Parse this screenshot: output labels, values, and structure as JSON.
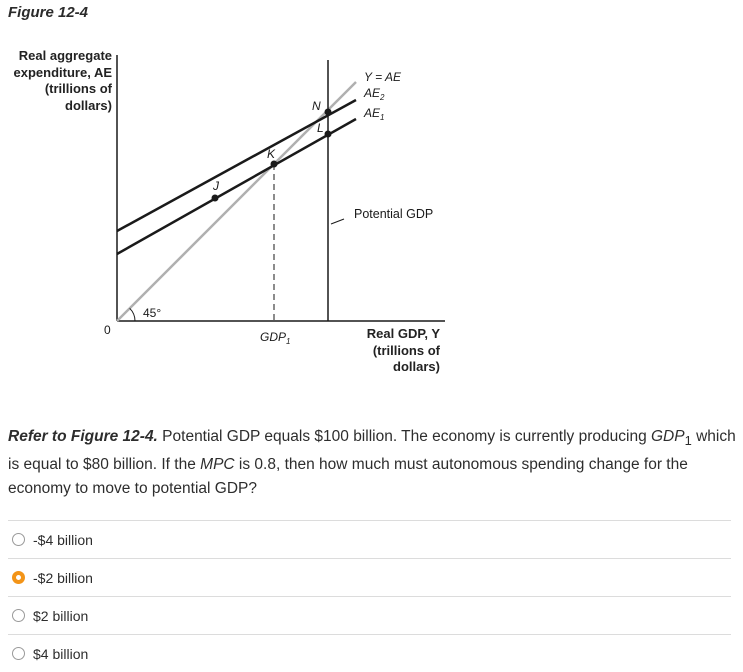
{
  "figure": {
    "title": "Figure 12-4",
    "y_axis_label": [
      "Real aggregate",
      "expenditure, AE",
      "(trillions of",
      "dollars)"
    ],
    "x_axis_label": [
      "Real GDP, Y",
      "(trillions of",
      "dollars)"
    ],
    "origin_label": "0",
    "angle_label": "45°",
    "curve_labels": {
      "y_equals_ae": "Y = AE",
      "ae2": "AE",
      "ae2_sub": "2",
      "ae1": "AE",
      "ae1_sub": "1",
      "potential_gdp": "Potential GDP",
      "gdp1": "GDP",
      "gdp1_sub": "1"
    },
    "points": [
      "J",
      "K",
      "L",
      "N"
    ]
  },
  "question": {
    "ref": "Refer to Figure 12-4.",
    "text_1": " Potential GDP equals $100 billion. The economy is currently producing ",
    "gdp_symbol": "GDP",
    "gdp_sub": "1",
    "text_2": " which is equal to $80 billion. If the ",
    "mpc": "MPC",
    "text_3": " is 0.8, then how much must autonomous spending change for the economy to move to potential GDP?"
  },
  "options": [
    {
      "label": "-$4 billion",
      "selected": false
    },
    {
      "label": "-$2 billion",
      "selected": true
    },
    {
      "label": "$2 billion",
      "selected": false
    },
    {
      "label": "$4 billion",
      "selected": false
    }
  ],
  "colors": {
    "selected_radio": "#f39418",
    "line_45": "#b0b0b0",
    "ae_lines": "#1a1a1a"
  }
}
